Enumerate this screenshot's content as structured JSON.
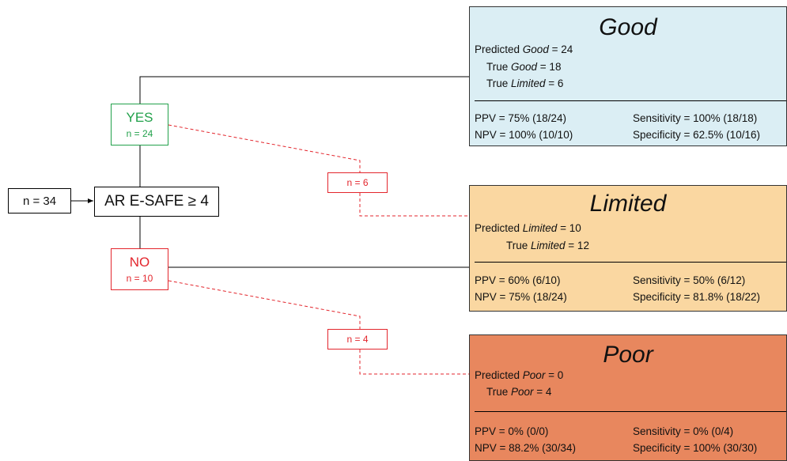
{
  "start_node": {
    "label": "n = 34"
  },
  "root_node": {
    "label": "AR E-SAFE ≥ 4"
  },
  "yes_node": {
    "label": "YES",
    "count": "n = 24"
  },
  "no_node": {
    "label": "NO",
    "count": "n = 10"
  },
  "misclassified": [
    {
      "label": "n = 6"
    },
    {
      "label": "n = 4"
    }
  ],
  "colors": {
    "good_bg": "#dbeef4",
    "limited_bg": "#fad7a1",
    "poor_bg": "#e8875e",
    "yes": "#22a14b",
    "no": "#e3262d"
  },
  "outcomes": {
    "good": {
      "title": "Good",
      "predicted": {
        "prefix": "Predicted ",
        "cls": "Good",
        "value": " = 24"
      },
      "true_lines": [
        {
          "prefix": "True ",
          "cls": "Good",
          "value": " = 18"
        },
        {
          "prefix": "True ",
          "cls": "Limited",
          "value": " = 6"
        }
      ],
      "ppv": "PPV = 75% (18/24)",
      "npv": "NPV = 100% (10/10)",
      "sensitivity": "Sensitivity = 100% (18/18)",
      "specificity": "Specificity = 62.5% (10/16)"
    },
    "limited": {
      "title": "Limited",
      "predicted": {
        "prefix": "Predicted ",
        "cls": "Limited",
        "value": " = 10"
      },
      "true_lines": [
        {
          "prefix": "True ",
          "cls": "Limited",
          "value": " = 12"
        }
      ],
      "ppv": "PPV = 60% (6/10)",
      "npv": "NPV = 75% (18/24)",
      "sensitivity": "Sensitivity = 50% (6/12)",
      "specificity": "Specificity = 81.8% (18/22)"
    },
    "poor": {
      "title": "Poor",
      "predicted": {
        "prefix": "Predicted ",
        "cls": "Poor",
        "value": " = 0"
      },
      "true_lines": [
        {
          "prefix": "True ",
          "cls": "Poor",
          "value": " = 4"
        }
      ],
      "ppv": "PPV = 0% (0/0)",
      "npv": "NPV = 88.2% (30/34)",
      "sensitivity": "Sensitivity = 0% (0/4)",
      "specificity": "Specificity = 100% (30/30)"
    }
  }
}
